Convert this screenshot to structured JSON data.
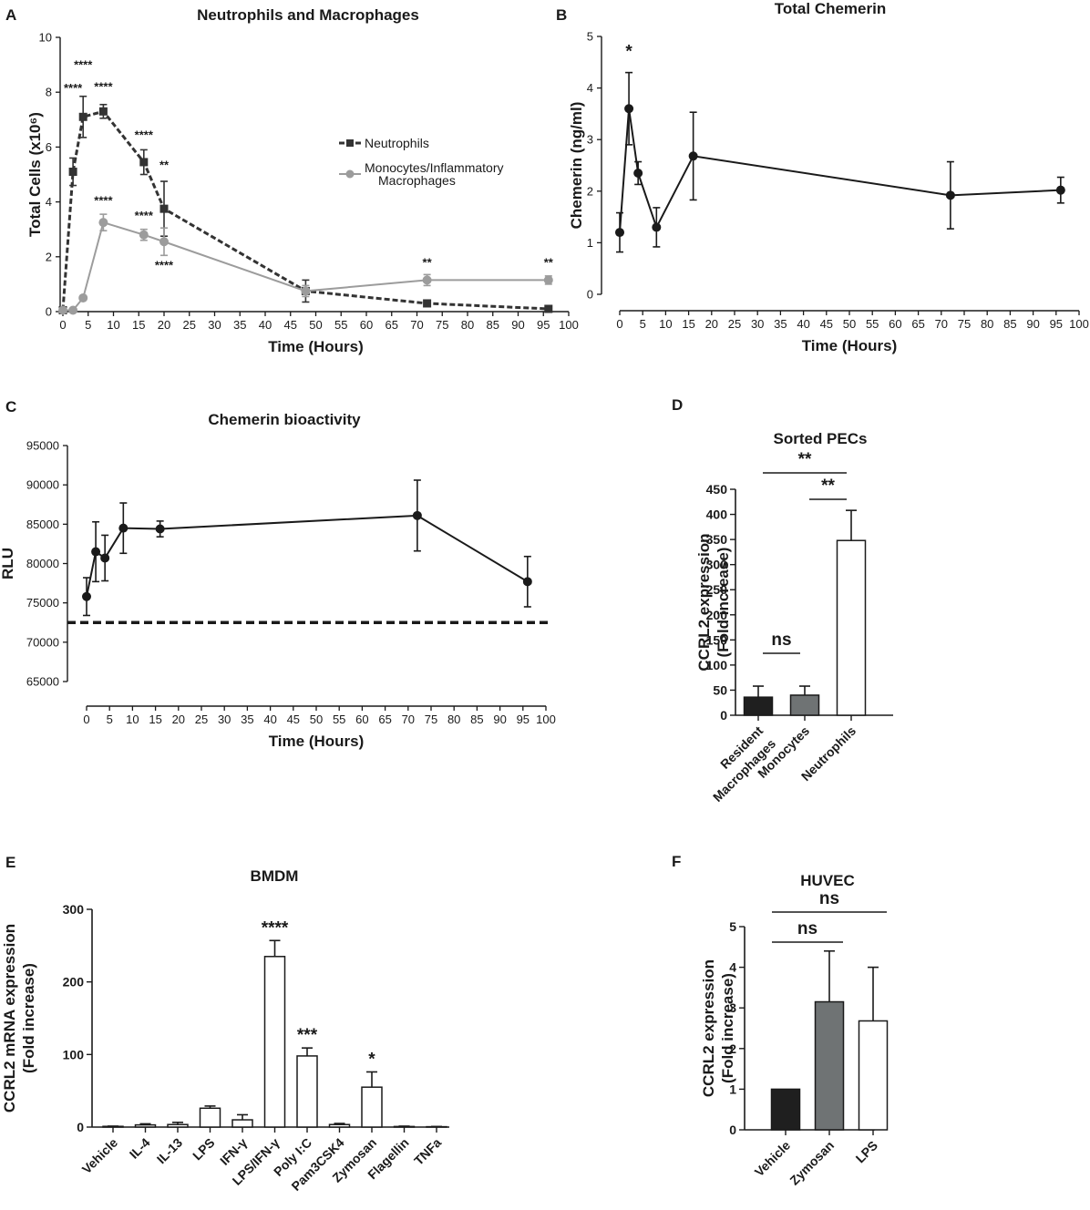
{
  "chart_data": [
    {
      "panel": "A",
      "type": "line",
      "title": "Neutrophils and Macrophages",
      "xlabel": "Time (Hours)",
      "ylabel": "Total Cells (x10⁶)",
      "xlim": [
        0,
        100
      ],
      "ylim": [
        0,
        10
      ],
      "xticks": [
        "0",
        "5",
        "10",
        "15",
        "20",
        "25",
        "30",
        "35",
        "40",
        "45",
        "50",
        "55",
        "60",
        "65",
        "70",
        "75",
        "80",
        "85",
        "90",
        "95",
        "100"
      ],
      "yticks": [
        "0",
        "2",
        "4",
        "6",
        "8",
        "10"
      ],
      "legend_position": "right-middle",
      "series": [
        {
          "name": "Neutrophils",
          "color": "#333333",
          "style": "dashed",
          "marker": "square",
          "x": [
            0,
            2,
            4,
            8,
            16,
            20,
            48,
            72,
            96
          ],
          "y": [
            0.05,
            5.1,
            7.1,
            7.3,
            5.45,
            3.75,
            0.75,
            0.3,
            0.1
          ],
          "err": [
            0.02,
            0.5,
            0.75,
            0.25,
            0.45,
            1.0,
            0.4,
            0.1,
            0.05
          ],
          "annotations": [
            {
              "x": 2,
              "y": 8.0,
              "text": "****"
            },
            {
              "x": 4,
              "y": 8.85,
              "text": "****"
            },
            {
              "x": 8,
              "y": 8.05,
              "text": "****"
            },
            {
              "x": 16,
              "y": 6.3,
              "text": "****"
            },
            {
              "x": 20,
              "y": 5.2,
              "text": "**"
            }
          ]
        },
        {
          "name": "Monocytes/Inflammatory Macrophages",
          "color": "#9c9c9c",
          "style": "solid",
          "marker": "circle",
          "x": [
            0,
            2,
            4,
            8,
            16,
            20,
            48,
            72,
            96
          ],
          "y": [
            0.05,
            0.05,
            0.5,
            3.25,
            2.8,
            2.55,
            0.75,
            1.15,
            1.15
          ],
          "err": [
            0.02,
            0.02,
            0.05,
            0.3,
            0.2,
            0.5,
            0.2,
            0.2,
            0.15
          ],
          "annotations": [
            {
              "x": 8,
              "y": 3.9,
              "text": "****"
            },
            {
              "x": 16,
              "y": 3.35,
              "text": "****"
            },
            {
              "x": 20,
              "y": 1.55,
              "text": "****"
            },
            {
              "x": 72,
              "y": 1.65,
              "text": "**"
            },
            {
              "x": 96,
              "y": 1.65,
              "text": "**"
            }
          ]
        }
      ]
    },
    {
      "panel": "B",
      "type": "line",
      "title": "Total Chemerin",
      "xlabel": "Time (Hours)",
      "ylabel": "Chemerin (ng/ml)",
      "xlim": [
        0,
        100
      ],
      "ylim": [
        0,
        5
      ],
      "xticks": [
        "0",
        "5",
        "10",
        "15",
        "20",
        "25",
        "30",
        "35",
        "40",
        "45",
        "50",
        "55",
        "60",
        "65",
        "70",
        "75",
        "80",
        "85",
        "90",
        "95",
        "100"
      ],
      "yticks": [
        "0",
        "1",
        "2",
        "3",
        "4",
        "5"
      ],
      "series": [
        {
          "name": "Total Chemerin",
          "color": "#1a1a1a",
          "x": [
            0,
            2,
            4,
            8,
            16,
            72,
            96
          ],
          "y": [
            1.2,
            3.6,
            2.35,
            1.3,
            2.68,
            1.92,
            2.02
          ],
          "err": [
            0.38,
            0.7,
            0.22,
            0.38,
            0.85,
            0.65,
            0.25
          ],
          "annotations": [
            {
              "x": 2,
              "y": 4.6,
              "text": "*"
            }
          ]
        }
      ]
    },
    {
      "panel": "C",
      "type": "line",
      "title": "Chemerin bioactivity",
      "xlabel": "Time (Hours)",
      "ylabel": "RLU",
      "xlim": [
        0,
        100
      ],
      "ylim": [
        65000,
        95000
      ],
      "xticks": [
        "0",
        "5",
        "10",
        "15",
        "20",
        "25",
        "30",
        "35",
        "40",
        "45",
        "50",
        "55",
        "60",
        "65",
        "70",
        "75",
        "80",
        "85",
        "90",
        "95",
        "100"
      ],
      "yticks": [
        "65000",
        "70000",
        "75000",
        "80000",
        "85000",
        "90000",
        "95000"
      ],
      "baseline": 72500,
      "series": [
        {
          "name": "Chemerin bioactivity",
          "color": "#1a1a1a",
          "x": [
            0,
            2,
            4,
            8,
            16,
            72,
            96
          ],
          "y": [
            75800,
            81500,
            80700,
            84500,
            84400,
            86100,
            77700
          ],
          "err": [
            2400,
            3800,
            2900,
            3200,
            1000,
            4500,
            3200
          ]
        }
      ]
    },
    {
      "panel": "D",
      "type": "bar",
      "title": "Sorted PECs",
      "ylabel": "CCRL2 expression (Fold increase)",
      "ylim": [
        0,
        450
      ],
      "yticks": [
        "0",
        "50",
        "100",
        "150",
        "200",
        "250",
        "300",
        "350",
        "400",
        "450"
      ],
      "categories": [
        "Resident Macrophages",
        "Monocytes",
        "Neutrophils"
      ],
      "values": [
        36,
        40,
        348
      ],
      "err": [
        22,
        18,
        60
      ],
      "colors": [
        "#1f1f1f",
        "#6f7374",
        "#ffffff"
      ],
      "comparisons": [
        {
          "from": 0,
          "to": 1,
          "text": "ns"
        },
        {
          "from": 1,
          "to": 2,
          "text": "**"
        },
        {
          "from": 0,
          "to": 2,
          "text": "**"
        }
      ]
    },
    {
      "panel": "E",
      "type": "bar",
      "title": "BMDM",
      "ylabel": "CCRL2 mRNA expression (Fold increase)",
      "ylim": [
        0,
        300
      ],
      "yticks": [
        "0",
        "100",
        "200",
        "300"
      ],
      "categories": [
        "Vehicle",
        "IL-4",
        "IL-13",
        "LPS",
        "IFN-γ",
        "LPS/IFN-γ",
        "Poly I:C",
        "Pam3CSK4",
        "Zymosan",
        "Flagellin",
        "TNFa"
      ],
      "values": [
        1,
        3,
        3.5,
        26,
        10,
        235,
        98,
        3.5,
        55,
        0.8,
        0.5
      ],
      "err": [
        0.3,
        1.5,
        3,
        3,
        7,
        22,
        11,
        1.5,
        21,
        0.5,
        0.3
      ],
      "significance": [
        "",
        "",
        "",
        "",
        "",
        "****",
        "***",
        "",
        "*",
        "",
        ""
      ]
    },
    {
      "panel": "F",
      "type": "bar",
      "title": "HUVEC",
      "ylabel": "CCRL2 expression (Fold increase)",
      "ylim": [
        0,
        5
      ],
      "yticks": [
        "0",
        "1",
        "2",
        "3",
        "4",
        "5"
      ],
      "categories": [
        "Vehicle",
        "Zymosan",
        "LPS"
      ],
      "values": [
        1,
        3.15,
        2.68
      ],
      "err": [
        0,
        1.25,
        1.32
      ],
      "colors": [
        "#1f1f1f",
        "#6f7374",
        "#ffffff"
      ],
      "comparisons": [
        {
          "from": 0,
          "to": 1,
          "text": "ns"
        },
        {
          "from": 0,
          "to": 2,
          "text": "ns"
        }
      ]
    }
  ]
}
